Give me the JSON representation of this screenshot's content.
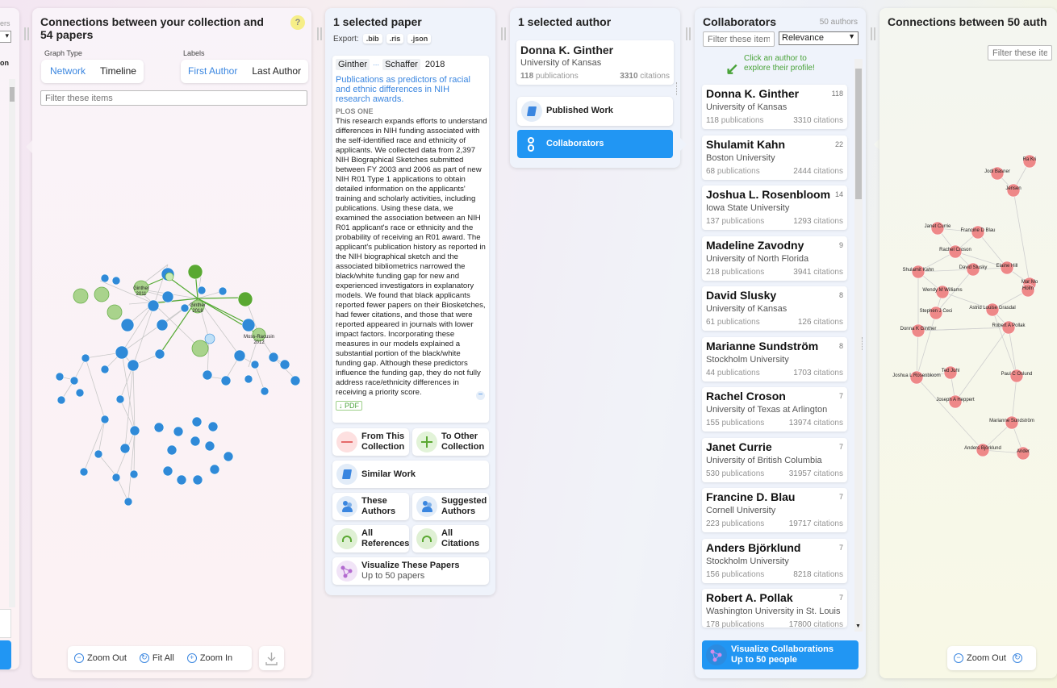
{
  "left_edge": {
    "partial_label_1": "ers",
    "partial_label_2": "on"
  },
  "collection_panel": {
    "title": "Connections between your collection and 54 papers",
    "help_icon": "?",
    "graph_type_label": "Graph Type",
    "graph_type_options": [
      "Network",
      "Timeline"
    ],
    "labels_label": "Labels",
    "labels_options": [
      "First Author",
      "Last Author"
    ],
    "filter_placeholder": "Filter these items",
    "node_labels": [
      "Ginther 2011",
      "Ginther 2018",
      "Moss-Racusin 2012"
    ],
    "zoom_out": "Zoom Out",
    "fit_all": "Fit All",
    "zoom_in": "Zoom In"
  },
  "paper_panel": {
    "title": "1 selected paper",
    "export_label": "Export:",
    "export_formats": [
      ".bib",
      ".ris",
      ".json"
    ],
    "first_author": "Ginther",
    "ellipsis": "···",
    "last_author": "Schaffer",
    "year": "2018",
    "paper_title": "Publications as predictors of racial and ethnic differences in NIH research awards.",
    "journal": "PLOS ONE",
    "abstract": "This research expands efforts to understand differences in NIH funding associated with the self-identified race and ethnicity of applicants. We collected data from 2,397 NIH Biographical Sketches submitted between FY 2003 and 2006 as part of new NIH R01 Type 1 applications to obtain detailed information on the applicants' training and scholarly activities, including publications. Using these data, we examined the association between an NIH R01 applicant's race or ethnicity and the probability of receiving an R01 award. The applicant's publication history as reported in the NIH biographical sketch and the associated bibliometrics narrowed the black/white funding gap for new and experienced investigators in explanatory models. We found that black applicants reported fewer papers on their Biosketches, had fewer citations, and those that were reported appeared in journals with lower impact factors. Incorporating these measures in our models explained a substantial portion of the black/white funding gap. Although these predictors influence the funding gap, they do not fully address race/ethnicity differences in receiving a priority score.",
    "pdf_label": "PDF",
    "collapse": "−",
    "actions": {
      "from_collection": [
        "From This",
        "Collection"
      ],
      "to_collection": [
        "To Other",
        "Collection"
      ],
      "similar_work": "Similar Work",
      "these_authors": [
        "These",
        "Authors"
      ],
      "suggested_authors": [
        "Suggested",
        "Authors"
      ],
      "all_references": [
        "All",
        "References"
      ],
      "all_citations": [
        "All",
        "Citations"
      ],
      "visualize": "Visualize These Papers",
      "visualize_sub": "Up to 50 papers"
    }
  },
  "author_panel": {
    "title": "1 selected author",
    "name": "Donna K. Ginther",
    "affiliation": "University of Kansas",
    "publications": "118",
    "publications_suffix": " publications",
    "citations": "3310",
    "citations_suffix": " citations",
    "published_work": "Published Work",
    "collaborators": "Collaborators"
  },
  "collaborators_panel": {
    "title": "Collaborators",
    "count": "50 authors",
    "filter_placeholder": "Filter these items",
    "sort_value": "Relevance",
    "hint": "Click an author to explore their profile!",
    "pub_suffix": " publications",
    "cit_suffix": " citations",
    "authors": [
      {
        "name": "Donna K. Ginther",
        "count": "118",
        "affiliation": "University of Kansas",
        "pubs": "118",
        "cites": "3310"
      },
      {
        "name": "Shulamit Kahn",
        "count": "22",
        "affiliation": "Boston University",
        "pubs": "68",
        "cites": "2444"
      },
      {
        "name": "Joshua L. Rosenbloom",
        "count": "14",
        "affiliation": "Iowa State University",
        "pubs": "137",
        "cites": "1293"
      },
      {
        "name": "Madeline Zavodny",
        "count": "9",
        "affiliation": "University of North Florida",
        "pubs": "218",
        "cites": "3941"
      },
      {
        "name": "David Slusky",
        "count": "8",
        "affiliation": "University of Kansas",
        "pubs": "61",
        "cites": "126"
      },
      {
        "name": "Marianne Sundström",
        "count": "8",
        "affiliation": "Stockholm University",
        "pubs": "44",
        "cites": "1703"
      },
      {
        "name": "Rachel Croson",
        "count": "7",
        "affiliation": "University of Texas at Arlington",
        "pubs": "155",
        "cites": "13974"
      },
      {
        "name": "Janet Currie",
        "count": "7",
        "affiliation": "University of British Columbia",
        "pubs": "530",
        "cites": "31957"
      },
      {
        "name": "Francine D. Blau",
        "count": "7",
        "affiliation": "Cornell University",
        "pubs": "223",
        "cites": "19717"
      },
      {
        "name": "Anders Björklund",
        "count": "7",
        "affiliation": "Stockholm University",
        "pubs": "156",
        "cites": "8218"
      },
      {
        "name": "Robert A. Pollak",
        "count": "7",
        "affiliation": "Washington University in St. Louis",
        "pubs": "178",
        "cites": "17800"
      }
    ],
    "visualize": "Visualize Collaborations",
    "visualize_sub": "Up to 50 people"
  },
  "author_graph_panel": {
    "title": "Connections between 50 auth",
    "filter_placeholder": "Filter these items",
    "zoom_out": "Zoom Out",
    "node_labels": [
      "Jodi Basner",
      "Ra Kri",
      "Jensen",
      "Janet Currie",
      "Francine D Blau",
      "Rachel Croson",
      "Shulamit Kahn",
      "Wendy M Williams",
      "Stephen J Ceci",
      "David Slusky",
      "Elaine Hill",
      "Mar Mo",
      "Holm",
      "Astrid Louise Grasdal",
      "Robert A Pollak",
      "Donna K Ginther",
      "Joshua L Rosenbloom",
      "Ted Juhl",
      "Joseph A Heppert",
      "Paul C Oslund",
      "Marianne Sundström",
      "Anders Björklund",
      "Ander"
    ]
  },
  "colors": {
    "accent": "#3a86e0",
    "active_button": "#2196f3",
    "paper_node_blue": "#2f8ad8",
    "paper_node_green": "#a9d38c",
    "author_node_red": "#ee8888"
  }
}
